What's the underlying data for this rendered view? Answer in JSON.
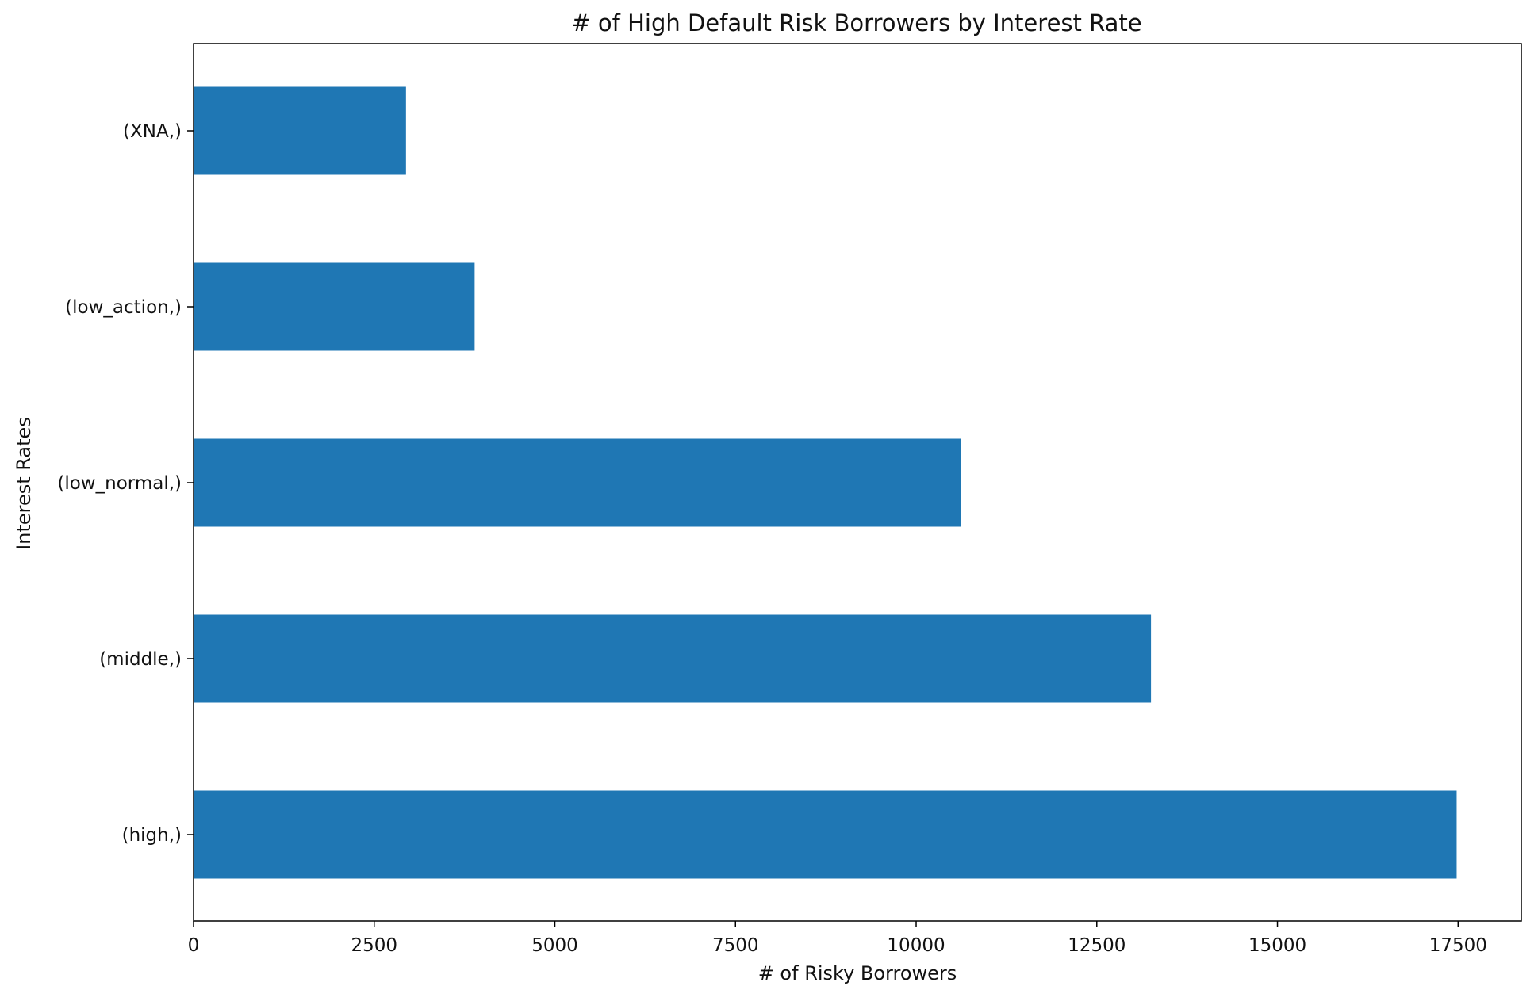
{
  "chart_data": {
    "type": "bar",
    "orientation": "horizontal",
    "title": "# of High Default Risk Borrowers by Interest Rate",
    "xlabel": "# of Risky Borrowers",
    "ylabel": "Interest Rates",
    "categories": [
      "(high,)",
      "(middle,)",
      "(low_normal,)",
      "(low_action,)",
      "(XNA,)"
    ],
    "values": [
      17480,
      13250,
      10620,
      3890,
      2940
    ],
    "xlim": [
      0,
      18375
    ],
    "xticks": [
      0,
      2500,
      5000,
      7500,
      10000,
      12500,
      15000,
      17500
    ],
    "bar_color": "#1f77b4",
    "grid": false,
    "legend": "none"
  }
}
